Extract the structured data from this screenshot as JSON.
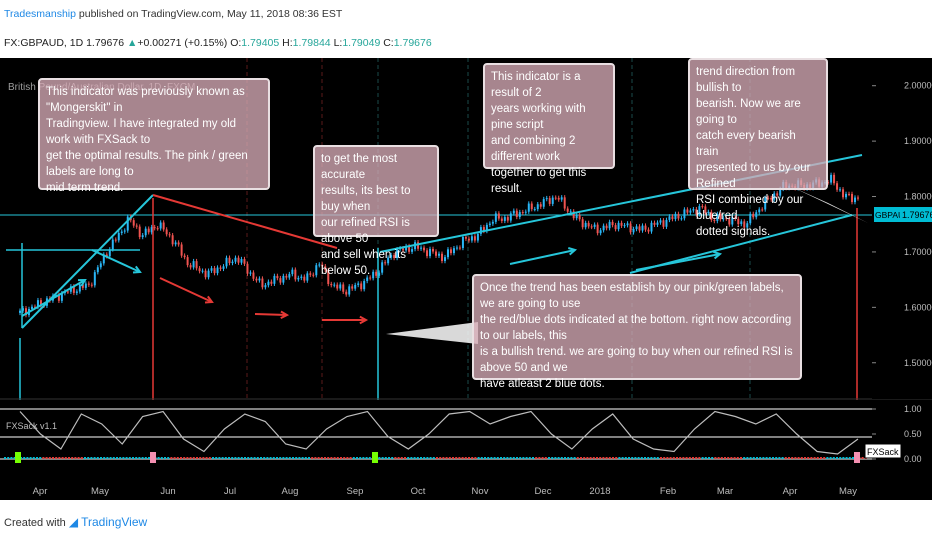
{
  "header": {
    "publisher": "Tradesmanship",
    "published_text": "published on TradingView.com, May 11, 2018 08:36 EST",
    "symbol_line": "FX:GBPAUD, 1D  1.79676",
    "change": "+0.00271 (+0.15%)",
    "ohlc": [
      {
        "label": "O:",
        "value": "1.79405"
      },
      {
        "label": "H:",
        "value": "1.79844"
      },
      {
        "label": "L:",
        "value": "1.79049"
      },
      {
        "label": "C:",
        "value": "1.79676"
      }
    ]
  },
  "chart_data": {
    "type": "line",
    "instrument_label": "British Pound/Australian Dollar, 1D, FXCM",
    "price_axis": {
      "ticks": [
        "2.00000",
        "1.90000",
        "1.80000",
        "1.70000",
        "1.60000",
        "1.50000"
      ],
      "range": [
        1.44,
        2.05
      ]
    },
    "last_price_label": "GBPAUD",
    "last_price": "1.79676",
    "time_axis": [
      "Apr",
      "May",
      "Jun",
      "Jul",
      "Aug",
      "Sep",
      "Oct",
      "Nov",
      "Dec",
      "2018",
      "Feb",
      "Mar",
      "Apr",
      "May"
    ],
    "price_series": {
      "name": "GBPAUD",
      "x": [
        0,
        25,
        35,
        44,
        52,
        55,
        62,
        70,
        78,
        85,
        95,
        110,
        122,
        138,
        145,
        152,
        158,
        165,
        172,
        180,
        190,
        200,
        215,
        225,
        232,
        240,
        245,
        260,
        272,
        282,
        292,
        302,
        315,
        330,
        345,
        352,
        358,
        368,
        378,
        388,
        400,
        412,
        418,
        425
      ],
      "close": [
        1.59,
        1.63,
        1.64,
        1.7,
        1.74,
        1.76,
        1.73,
        1.75,
        1.72,
        1.68,
        1.66,
        1.69,
        1.64,
        1.66,
        1.65,
        1.68,
        1.64,
        1.63,
        1.64,
        1.66,
        1.7,
        1.71,
        1.69,
        1.72,
        1.73,
        1.76,
        1.76,
        1.78,
        1.8,
        1.76,
        1.74,
        1.75,
        1.74,
        1.76,
        1.78,
        1.76,
        1.76,
        1.75,
        1.79,
        1.82,
        1.82,
        1.83,
        1.8,
        1.797
      ]
    },
    "oscillator": {
      "name": "FXSack v1.1",
      "ticks": [
        "1.00",
        "0.50",
        "0.00"
      ],
      "ticks_value": [
        1.0,
        0.5,
        0.0
      ],
      "values": [
        0.95,
        0.5,
        0.2,
        0.9,
        0.7,
        0.3,
        0.85,
        0.95,
        0.4,
        0.15,
        0.6,
        0.9,
        0.75,
        0.3,
        0.2,
        0.6,
        0.85,
        0.95,
        0.45,
        0.2,
        0.5,
        0.9,
        0.95,
        0.7,
        0.85,
        0.95,
        0.5,
        0.2,
        0.6,
        0.9,
        0.4,
        0.2,
        0.15,
        0.6,
        0.95,
        0.85,
        0.7,
        0.9,
        0.5,
        0.15,
        0.1,
        0.4
      ]
    },
    "annotations": [
      {
        "id": "note1",
        "lines": [
          "This indicator was previously known as \"Mongerskit\" in",
          "Tradingview. I have integrated my old work with FXSack to",
          "get the optimal results.  The pink / green labels are long to",
          "mid term trend."
        ]
      },
      {
        "id": "note2",
        "lines": [
          "to get the most accurate",
          "results, its best to buy when",
          "our refined RSI is above 50",
          "and sell when its below 50."
        ]
      },
      {
        "id": "note3",
        "lines": [
          "This indicator is a result of 2",
          "years working with pine script",
          "and combining 2 different work",
          "together to get this result."
        ]
      },
      {
        "id": "note4",
        "lines": [
          "trend direction from bullish to",
          "bearish. Now we are going to",
          "catch every bearish train",
          "presented to us by our Refined",
          "RSI combined by our blue/red",
          "dotted signals."
        ]
      },
      {
        "id": "note5",
        "lines": [
          "Once the trend has been establish by our pink/green labels, we are going to use",
          "the red/blue dots indicated at the bottom. right now according to our labels, this",
          "is a bullish trend. we are going to buy when our refined RSI is above 50 and we",
          "have atleast 2 blue dots."
        ]
      }
    ],
    "colors": {
      "background": "#000000",
      "up": "#29b6f6",
      "down": "#ef5350",
      "trendline": "#26c6da",
      "arrow_red": "#e53935",
      "grid_red": "#5a1a1a",
      "grid_cyan": "#1a4a4a",
      "oscillator_line": "#bdbdbd",
      "blue_dot": "#00bcd4",
      "red_dot": "#e53935",
      "green_label": "#76ff03",
      "pink_label": "#f48fb1"
    }
  },
  "footer": {
    "created_with": "Created with",
    "brand": "TradingView"
  }
}
